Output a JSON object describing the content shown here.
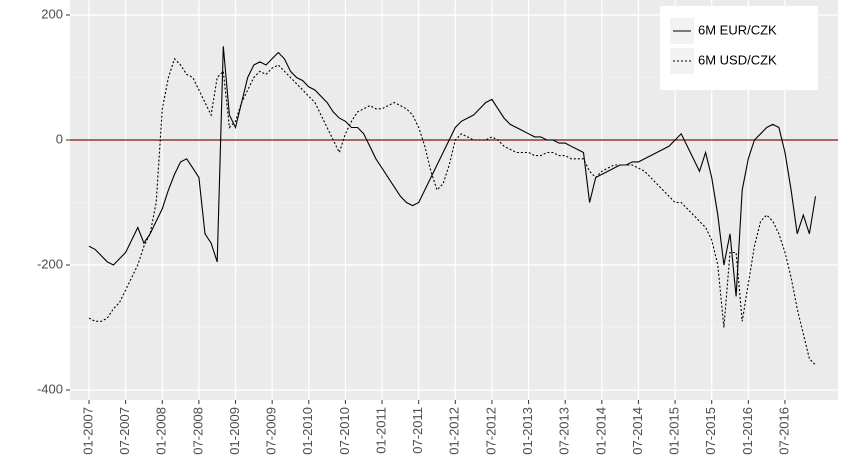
{
  "chart_data": {
    "type": "line",
    "categories": [
      "01-2007",
      null,
      null,
      null,
      null,
      null,
      "07-2007",
      null,
      null,
      null,
      null,
      null,
      "01-2008",
      null,
      null,
      null,
      null,
      null,
      "07-2008",
      null,
      null,
      null,
      null,
      null,
      "01-2009",
      null,
      null,
      null,
      null,
      null,
      "07-2009",
      null,
      null,
      null,
      null,
      null,
      "01-2010",
      null,
      null,
      null,
      null,
      null,
      "07-2010",
      null,
      null,
      null,
      null,
      null,
      "01-2011",
      null,
      null,
      null,
      null,
      null,
      "07-2011",
      null,
      null,
      null,
      null,
      null,
      "01-2012",
      null,
      null,
      null,
      null,
      null,
      "07-2012",
      null,
      null,
      null,
      null,
      null,
      "01-2013",
      null,
      null,
      null,
      null,
      null,
      "07-2013",
      null,
      null,
      null,
      null,
      null,
      "01-2014",
      null,
      null,
      null,
      null,
      null,
      "07-2014",
      null,
      null,
      null,
      null,
      null,
      "01-2015",
      null,
      null,
      null,
      null,
      null,
      "07-2015",
      null,
      null,
      null,
      null,
      null,
      "01-2016",
      null,
      null,
      null,
      null,
      null,
      "07-2016",
      null,
      null,
      null,
      null,
      null
    ],
    "series": [
      {
        "name": "6M EUR/CZK",
        "color": "#000000",
        "linestyle": "solid",
        "values": [
          -170,
          -175,
          -185,
          -195,
          -200,
          -190,
          -180,
          -160,
          -140,
          -165,
          -150,
          -130,
          -110,
          -80,
          -55,
          -35,
          -30,
          -45,
          -60,
          -150,
          -165,
          -195,
          150,
          40,
          20,
          60,
          100,
          120,
          125,
          120,
          130,
          140,
          130,
          110,
          100,
          95,
          85,
          80,
          70,
          60,
          45,
          35,
          30,
          20,
          20,
          10,
          -10,
          -30,
          -45,
          -60,
          -75,
          -90,
          -100,
          -105,
          -100,
          -80,
          -60,
          -40,
          -20,
          0,
          20,
          30,
          35,
          40,
          50,
          60,
          65,
          50,
          35,
          25,
          20,
          15,
          10,
          5,
          5,
          0,
          0,
          -5,
          -5,
          -10,
          -15,
          -20,
          -100,
          -60,
          -55,
          -50,
          -45,
          -40,
          -40,
          -35,
          -35,
          -30,
          -25,
          -20,
          -15,
          -10,
          0,
          10,
          -10,
          -30,
          -50,
          -20,
          -60,
          -120,
          -200,
          -150,
          -250,
          -80,
          -30,
          0,
          10,
          20,
          25,
          20,
          -20,
          -80,
          -150,
          -120,
          -150,
          -90
        ]
      },
      {
        "name": "6M USD/CZK",
        "color": "#000000",
        "linestyle": "dotted",
        "values": [
          -285,
          -290,
          -290,
          -285,
          -270,
          -260,
          -240,
          -220,
          -200,
          -170,
          -150,
          -100,
          50,
          100,
          130,
          120,
          105,
          100,
          80,
          60,
          40,
          100,
          110,
          20,
          30,
          60,
          80,
          100,
          110,
          105,
          115,
          120,
          110,
          100,
          90,
          80,
          70,
          60,
          40,
          20,
          0,
          -20,
          10,
          30,
          45,
          50,
          55,
          50,
          50,
          55,
          60,
          55,
          50,
          40,
          20,
          -10,
          -50,
          -80,
          -70,
          -40,
          0,
          10,
          5,
          0,
          0,
          0,
          5,
          0,
          -10,
          -15,
          -20,
          -20,
          -20,
          -25,
          -25,
          -20,
          -20,
          -25,
          -25,
          -30,
          -30,
          -30,
          -50,
          -60,
          -50,
          -45,
          -40,
          -40,
          -40,
          -40,
          -45,
          -50,
          -60,
          -70,
          -80,
          -90,
          -100,
          -100,
          -110,
          -120,
          -130,
          -140,
          -160,
          -200,
          -300,
          -180,
          -180,
          -290,
          -230,
          -170,
          -130,
          -120,
          -130,
          -150,
          -180,
          -220,
          -270,
          -310,
          -350,
          -360
        ]
      }
    ],
    "ylim": [
      -416,
      224
    ],
    "yticks": [
      -400,
      -200,
      0,
      200
    ],
    "grid": true,
    "reference_line": {
      "value": 0,
      "color": "#7f1010"
    },
    "legend_position": "top-right"
  }
}
